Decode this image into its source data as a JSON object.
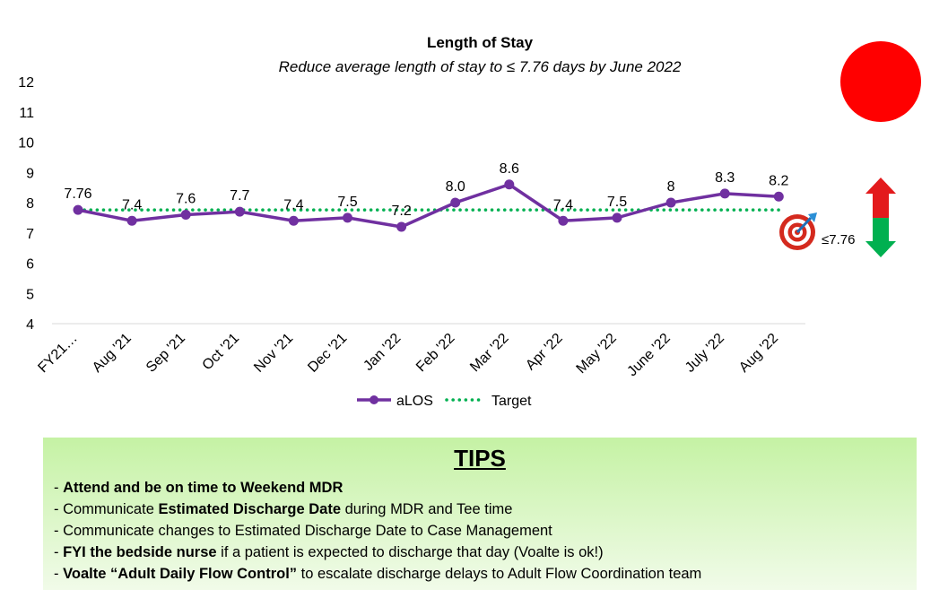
{
  "status_color": "#ff0000",
  "target_icon": "bullseye-icon",
  "target_label": "≤7.76",
  "arrows": {
    "up_color": "#e31a1c",
    "down_color": "#00b050"
  },
  "chart_data": {
    "type": "line",
    "title": "Length of Stay",
    "subtitle": "Reduce average length of stay to ≤ 7.76 days by June 2022",
    "categories": [
      "FY21…",
      "Aug '21",
      "Sep '21",
      "Oct '21",
      "Nov '21",
      "Dec '21",
      "Jan '22",
      "Feb '22",
      "Mar '22",
      "Apr '22",
      "May '22",
      "June '22",
      "July '22",
      "Aug '22"
    ],
    "series": [
      {
        "name": "aLOS",
        "color": "#7030a0",
        "values": [
          7.76,
          7.4,
          7.6,
          7.7,
          7.4,
          7.5,
          7.2,
          8.0,
          8.6,
          7.4,
          7.5,
          8.0,
          8.3,
          8.2
        ],
        "labels": [
          "7.76",
          "7.4",
          "7.6",
          "7.7",
          "7.4",
          "7.5",
          "7.2",
          "8.0",
          "8.6",
          "7.4",
          "7.5",
          "8",
          "8.3",
          "8.2"
        ]
      },
      {
        "name": "Target",
        "color": "#00b050",
        "style": "dotted",
        "values": [
          7.76,
          7.76,
          7.76,
          7.76,
          7.76,
          7.76,
          7.76,
          7.76,
          7.76,
          7.76,
          7.76,
          7.76,
          7.76,
          7.76
        ]
      }
    ],
    "ylim": [
      4,
      12
    ],
    "yticks": [
      "4",
      "5",
      "6",
      "7",
      "8",
      "9",
      "10",
      "11",
      "12"
    ],
    "grid": false,
    "legend": "bottom"
  },
  "tips": {
    "title": "TIPS",
    "items": [
      {
        "prefix": "- ",
        "bold": "Attend and be on time to Weekend MDR",
        "rest": ""
      },
      {
        "prefix": "- Communicate ",
        "bold": "Estimated Discharge Date",
        "rest": " during MDR and Tee time"
      },
      {
        "prefix": "- Communicate changes to Estimated Discharge Date to Case Management",
        "bold": "",
        "rest": ""
      },
      {
        "prefix": "- ",
        "bold": "FYI the bedside nurse",
        "rest": " if a patient is expected to discharge that day (Voalte is ok!)"
      },
      {
        "prefix": "- ",
        "bold": "Voalte “Adult Daily Flow Control”",
        "rest": " to escalate discharge delays to Adult Flow Coordination team"
      }
    ]
  }
}
